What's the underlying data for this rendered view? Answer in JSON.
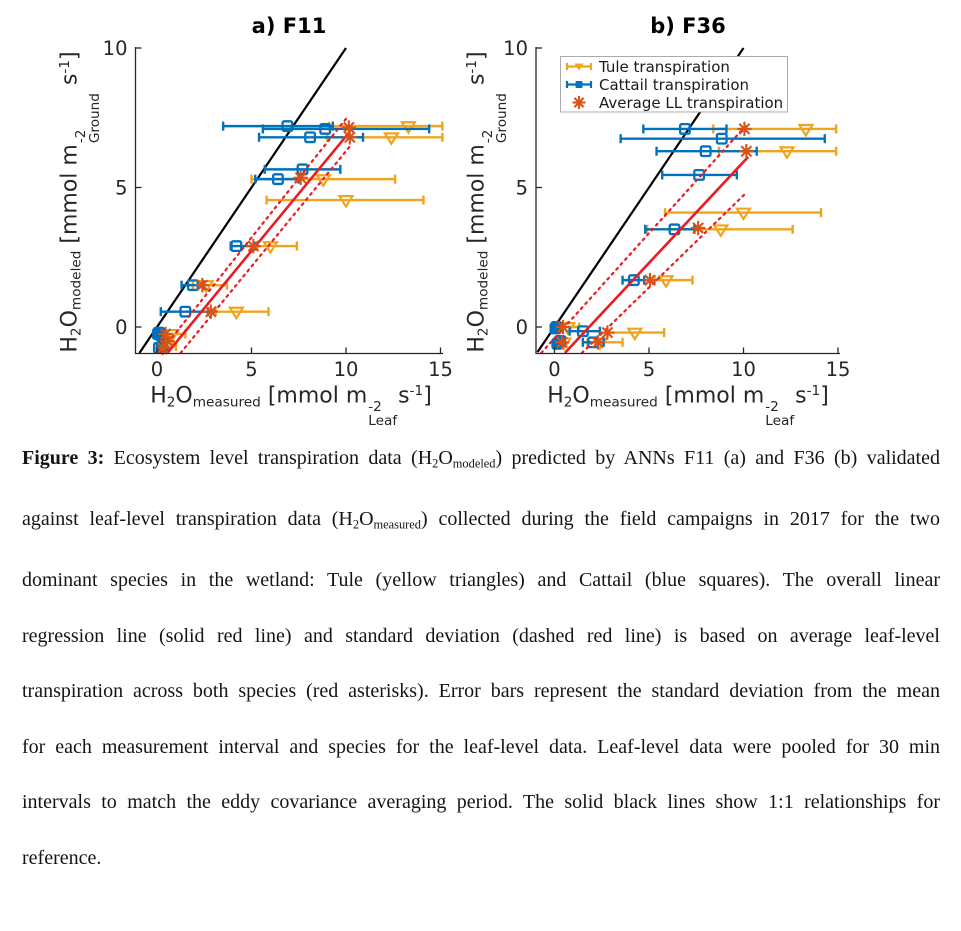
{
  "labels": {
    "xlabel": [
      {
        "t": "H"
      },
      {
        "t": "2",
        "s": "sub"
      },
      {
        "t": "O"
      },
      {
        "t": "measured",
        "s": "sub"
      },
      {
        "t": " [mmol m"
      },
      {
        "stack": {
          "sup": "-2",
          "sub": "Leaf"
        }
      },
      {
        "t": "s"
      },
      {
        "t": "-1",
        "s": "sup"
      },
      {
        "t": "]"
      }
    ],
    "ylabel": [
      {
        "t": "H"
      },
      {
        "t": "2",
        "s": "sub"
      },
      {
        "t": "O"
      },
      {
        "t": "modeled",
        "s": "sub"
      },
      {
        "t": " [mmol m"
      },
      {
        "stack": {
          "sup": "-2",
          "sub": "Ground"
        }
      },
      {
        "t": " s"
      },
      {
        "t": "-1",
        "s": "sup"
      },
      {
        "t": "]"
      }
    ]
  },
  "legend": {
    "entries": [
      {
        "label": "Tule transpiration",
        "marker": "triangle-down",
        "color": "#F0A41E"
      },
      {
        "label": "Cattail transpiration",
        "marker": "square",
        "color": "#0072BD"
      },
      {
        "label": "Average LL transpiration",
        "marker": "asterisk",
        "color": "#D95319"
      }
    ]
  },
  "colors": {
    "tule_yellow": "#F0A41E",
    "cattail_blue": "#0072BD",
    "average_red": "#D95319",
    "regression_red": "#EC1B23",
    "one_to_one_black": "#000000",
    "axis_gray": "#262626"
  },
  "caption": {
    "segments": [
      {
        "t": "Figure 3:",
        "s": "b"
      },
      {
        "t": " Ecosystem level transpiration data (H"
      },
      {
        "t": "2",
        "s": "sub"
      },
      {
        "t": "O"
      },
      {
        "t": "modeled",
        "s": "sub"
      },
      {
        "t": ") predicted by ANNs F11 (a) and F36 (b) validated against leaf-level transpiration data (H"
      },
      {
        "t": "2",
        "s": "sub"
      },
      {
        "t": "O"
      },
      {
        "t": "measured",
        "s": "sub"
      },
      {
        "t": ") collected during the field campaigns in 2017 for the two dominant species in the wetland: Tule (yellow triangles) and Cattail (blue squares). The overall linear regression line (solid red line) and standard deviation (dashed red line) is based on average leaf-level transpiration across both species (red asterisks). Error bars represent the standard deviation from the mean for each measurement interval and species for the leaf-level data. Leaf-level data were pooled for 30 min intervals to match the eddy covariance averaging period. The solid black lines show 1:1 relationships for reference."
      }
    ]
  },
  "chart_data": [
    {
      "type": "scatter",
      "title": "a) F11",
      "xlabel": "H2O_measured [mmol m^-2_Leaf s^-1]",
      "ylabel": "H2O_modeled [mmol m^-2_Ground s^-1]",
      "xlim": [
        -1.15,
        15.5
      ],
      "ylim": [
        -0.95,
        10
      ],
      "xticks": [
        0,
        5,
        10,
        15
      ],
      "yticks": [
        0,
        5,
        10
      ],
      "grid": false,
      "legend_visible": false,
      "series": [
        {
          "name": "Tule transpiration",
          "marker": "triangle-down",
          "color": "#F0A41E",
          "points": [
            {
              "x": 13.3,
              "y": 7.2,
              "xlo": 9.1,
              "xhi": 15.1
            },
            {
              "x": 12.4,
              "y": 6.8,
              "xlo": 9.0,
              "xhi": 15.1
            },
            {
              "x": 8.8,
              "y": 5.3,
              "xlo": 5.0,
              "xhi": 12.6
            },
            {
              "x": 10.0,
              "y": 4.55,
              "xlo": 5.8,
              "xhi": 14.1
            },
            {
              "x": 6.0,
              "y": 2.9,
              "xlo": 5.3,
              "xhi": 7.4
            },
            {
              "x": 2.6,
              "y": 1.5,
              "xlo": 1.9,
              "xhi": 3.7
            },
            {
              "x": 4.2,
              "y": 0.55,
              "xlo": 3.1,
              "xhi": 5.9
            },
            {
              "x": 0.8,
              "y": -0.25,
              "xlo": 0.3,
              "xhi": 1.5
            },
            {
              "x": 0.5,
              "y": -0.7,
              "xlo": 0.1,
              "xhi": 1.0
            }
          ]
        },
        {
          "name": "Cattail transpiration",
          "marker": "square",
          "color": "#0072BD",
          "points": [
            {
              "x": 6.9,
              "y": 7.2,
              "xlo": 3.5,
              "xhi": 9.3
            },
            {
              "x": 8.9,
              "y": 7.1,
              "xlo": 5.6,
              "xhi": 14.4
            },
            {
              "x": 8.1,
              "y": 6.8,
              "xlo": 5.4,
              "xhi": 10.9
            },
            {
              "x": 7.7,
              "y": 5.65,
              "xlo": 5.7,
              "xhi": 9.7
            },
            {
              "x": 6.4,
              "y": 5.3,
              "xlo": 5.2,
              "xhi": 7.5
            },
            {
              "x": 4.2,
              "y": 2.9,
              "xlo": 3.9,
              "xhi": 5.2
            },
            {
              "x": 1.9,
              "y": 1.5,
              "xlo": 1.3,
              "xhi": 2.5
            },
            {
              "x": 1.5,
              "y": 0.55,
              "xlo": 0.2,
              "xhi": 2.7
            },
            {
              "x": 0.1,
              "y": -0.2,
              "xlo": 0.0,
              "xhi": 0.35
            },
            {
              "x": 0.2,
              "y": -0.3,
              "fill": true
            },
            {
              "x": 0.05,
              "y": -0.25,
              "fill": true
            },
            {
              "x": 0.1,
              "y": -0.75,
              "xlo": 0.0,
              "xhi": 0.4
            },
            {
              "x": 0.3,
              "y": -0.7,
              "fill": true
            }
          ]
        },
        {
          "name": "Average LL transpiration",
          "marker": "asterisk",
          "color": "#D95319",
          "points": [
            {
              "x": 10.15,
              "y": 7.15
            },
            {
              "x": 10.2,
              "y": 6.8
            },
            {
              "x": 7.6,
              "y": 5.35
            },
            {
              "x": 5.1,
              "y": 2.9
            },
            {
              "x": 2.4,
              "y": 1.5
            },
            {
              "x": 2.85,
              "y": 0.55
            },
            {
              "x": 0.45,
              "y": -0.25
            },
            {
              "x": 0.55,
              "y": -0.5
            },
            {
              "x": 0.3,
              "y": -0.75
            }
          ]
        }
      ],
      "lines": [
        {
          "name": "1:1 line",
          "style": "solid",
          "color": "#000000",
          "width": 2.2,
          "x1": -0.93,
          "y1": -0.93,
          "x2": 10.0,
          "y2": 10.0
        },
        {
          "name": "regression +sd",
          "style": "dotted",
          "color": "#EC1B23",
          "width": 2.2,
          "x1": 0.15,
          "y1": -0.93,
          "x2": 10.1,
          "y2": 7.55
        },
        {
          "name": "regression -sd",
          "style": "dotted",
          "color": "#EC1B23",
          "width": 2.2,
          "x1": 1.25,
          "y1": -0.93,
          "x2": 10.3,
          "y2": 6.55
        },
        {
          "name": "regression",
          "style": "solid",
          "color": "#EC1B23",
          "width": 2.6,
          "x1": 0.55,
          "y1": -0.93,
          "x2": 10.2,
          "y2": 7.0
        }
      ]
    },
    {
      "type": "scatter",
      "title": "b) F36",
      "xlabel": "H2O_measured [mmol m^-2_Leaf s^-1]",
      "ylabel": "H2O_modeled [mmol m^-2_Ground s^-1]",
      "xlim": [
        -0.98,
        15.5
      ],
      "ylim": [
        -0.95,
        10
      ],
      "xticks": [
        0,
        5,
        10,
        15
      ],
      "yticks": [
        0,
        5,
        10
      ],
      "grid": false,
      "legend_visible": true,
      "series": [
        {
          "name": "Tule transpiration",
          "marker": "triangle-down",
          "color": "#F0A41E",
          "points": [
            {
              "x": 13.3,
              "y": 7.1,
              "xlo": 8.4,
              "xhi": 14.9
            },
            {
              "x": 12.3,
              "y": 6.3,
              "xlo": 8.7,
              "xhi": 14.9
            },
            {
              "x": 10.0,
              "y": 4.1,
              "xlo": 5.85,
              "xhi": 14.1
            },
            {
              "x": 8.8,
              "y": 3.5,
              "xlo": 4.9,
              "xhi": 12.6
            },
            {
              "x": 5.9,
              "y": 1.68,
              "xlo": 5.3,
              "xhi": 7.3
            },
            {
              "x": 4.25,
              "y": -0.2,
              "xlo": 2.8,
              "xhi": 5.8
            },
            {
              "x": 2.4,
              "y": -0.55,
              "xlo": 1.75,
              "xhi": 3.6
            },
            {
              "x": 0.7,
              "y": 0.0,
              "xlo": 0.3,
              "xhi": 1.3
            },
            {
              "x": 0.5,
              "y": -0.55
            }
          ]
        },
        {
          "name": "Cattail transpiration",
          "marker": "square",
          "color": "#0072BD",
          "points": [
            {
              "x": 6.9,
              "y": 7.1,
              "xlo": 4.7,
              "xhi": 9.1
            },
            {
              "x": 8.85,
              "y": 6.75,
              "xlo": 3.5,
              "xhi": 14.3
            },
            {
              "x": 8.0,
              "y": 6.3,
              "xlo": 5.4,
              "xhi": 10.7
            },
            {
              "x": 7.65,
              "y": 5.45,
              "xlo": 5.7,
              "xhi": 9.65
            },
            {
              "x": 6.35,
              "y": 3.5,
              "xlo": 4.8,
              "xhi": 7.4
            },
            {
              "x": 4.2,
              "y": 1.68,
              "xlo": 3.6,
              "xhi": 4.75
            },
            {
              "x": 1.5,
              "y": -0.15,
              "xlo": 0.8,
              "xhi": 2.4
            },
            {
              "x": 2.05,
              "y": -0.55,
              "xlo": 1.5,
              "xhi": 2.6
            },
            {
              "x": 0.1,
              "y": 0.0,
              "xlo": 0.0,
              "xhi": 0.35
            },
            {
              "x": 0.05,
              "y": -0.05,
              "fill": true
            },
            {
              "x": 0.15,
              "y": -0.6,
              "fill": true
            },
            {
              "x": 0.3,
              "y": -0.5,
              "fill": true
            }
          ]
        },
        {
          "name": "Average LL transpiration",
          "marker": "asterisk",
          "color": "#D95319",
          "points": [
            {
              "x": 10.05,
              "y": 7.1
            },
            {
              "x": 10.15,
              "y": 6.3
            },
            {
              "x": 7.6,
              "y": 3.55
            },
            {
              "x": 5.05,
              "y": 1.68
            },
            {
              "x": 2.8,
              "y": -0.2
            },
            {
              "x": 2.3,
              "y": -0.55
            },
            {
              "x": 0.45,
              "y": 0.0
            },
            {
              "x": 0.4,
              "y": -0.55
            }
          ]
        }
      ],
      "lines": [
        {
          "name": "1:1 line",
          "style": "solid",
          "color": "#000000",
          "width": 2.2,
          "x1": -0.9,
          "y1": -0.9,
          "x2": 10.0,
          "y2": 10.0
        },
        {
          "name": "regression +sd",
          "style": "dotted",
          "color": "#EC1B23",
          "width": 2.2,
          "x1": -0.7,
          "y1": -0.93,
          "x2": 10.1,
          "y2": 7.2
        },
        {
          "name": "regression -sd",
          "style": "dotted",
          "color": "#EC1B23",
          "width": 2.2,
          "x1": 1.45,
          "y1": -0.93,
          "x2": 10.2,
          "y2": 4.85
        },
        {
          "name": "regression",
          "style": "solid",
          "color": "#EC1B23",
          "width": 2.6,
          "x1": 0.55,
          "y1": -0.93,
          "x2": 10.25,
          "y2": 6.1
        }
      ]
    }
  ]
}
